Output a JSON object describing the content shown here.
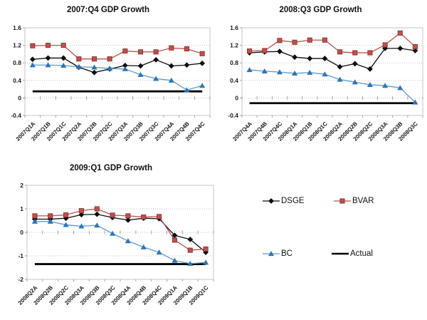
{
  "colors": {
    "dsge": "#0d0d0d",
    "bvar": "#C0504D",
    "bvar_border": "#8C3230",
    "bc_line": "#5B9BD5",
    "bc_marker": "#2E75B6",
    "actual": "#000000",
    "gridline": "#C6C6C6",
    "axis": "#9B9B9B",
    "text": "#1a1a1a"
  },
  "legend": {
    "items": [
      {
        "label": "DSGE",
        "series": "DSGE"
      },
      {
        "label": "BVAR",
        "series": "BVAR"
      },
      {
        "label": "BC",
        "series": "BC"
      },
      {
        "label": "Actual",
        "series": "Actual"
      }
    ]
  },
  "chart_data": [
    {
      "type": "line",
      "title": "2007:Q4 GDP Growth",
      "xlabel": "",
      "ylabel": "",
      "grid": true,
      "legend_position": "shared-bottom-right",
      "categories": [
        "2007Q1A",
        "2007Q1B",
        "2007Q1C",
        "2007Q2A",
        "2007Q2B",
        "2007Q2C",
        "2007Q3A",
        "2007Q3B",
        "2007Q3C",
        "2007Q4A",
        "2007Q4B",
        "2007Q4C"
      ],
      "ylim": [
        -0.4,
        1.6
      ],
      "yticks": [
        -0.4,
        0,
        0.4,
        0.8,
        1.2,
        1.6
      ],
      "series": [
        {
          "name": "DSGE",
          "marker": "diamond",
          "values": [
            0.88,
            0.91,
            0.91,
            0.7,
            0.58,
            0.66,
            0.74,
            0.73,
            0.87,
            0.73,
            0.75,
            0.79
          ]
        },
        {
          "name": "BVAR",
          "marker": "square",
          "values": [
            1.19,
            1.2,
            1.2,
            0.89,
            0.89,
            0.89,
            1.07,
            1.05,
            1.05,
            1.14,
            1.12,
            1.01
          ]
        },
        {
          "name": "BC",
          "marker": "triangle",
          "values": [
            0.75,
            0.75,
            0.74,
            0.71,
            0.7,
            0.67,
            0.66,
            0.53,
            0.44,
            0.4,
            0.18,
            0.28
          ]
        },
        {
          "name": "Actual",
          "marker": "none",
          "constant": 0.15
        }
      ]
    },
    {
      "type": "line",
      "title": "2008:Q3 GDP Growth",
      "xlabel": "",
      "ylabel": "",
      "grid": true,
      "legend_position": "shared-bottom-right",
      "categories": [
        "2007Q4A",
        "2007Q4B",
        "2007Q4C",
        "2008Q1A",
        "2008Q1B",
        "2008Q1C",
        "2008Q2A",
        "2008Q2B",
        "2008Q2C",
        "2008Q3A",
        "2008Q3B",
        "2008Q3C"
      ],
      "ylim": [
        -0.4,
        1.6
      ],
      "yticks": [
        -0.4,
        0,
        0.4,
        0.8,
        1.2,
        1.6
      ],
      "series": [
        {
          "name": "DSGE",
          "marker": "diamond",
          "values": [
            1.03,
            1.05,
            1.06,
            0.93,
            0.9,
            0.9,
            0.71,
            0.78,
            0.66,
            1.13,
            1.13,
            1.08
          ]
        },
        {
          "name": "BVAR",
          "marker": "square",
          "values": [
            1.07,
            1.08,
            1.31,
            1.27,
            1.32,
            1.32,
            1.05,
            1.03,
            1.03,
            1.21,
            1.48,
            1.17
          ]
        },
        {
          "name": "BC",
          "marker": "triangle",
          "values": [
            0.64,
            0.61,
            0.59,
            0.56,
            0.58,
            0.54,
            0.42,
            0.36,
            0.3,
            0.28,
            0.23,
            -0.1
          ]
        },
        {
          "name": "Actual",
          "marker": "none",
          "constant": -0.12
        }
      ]
    },
    {
      "type": "line",
      "title": "2009:Q1 GDP Growth",
      "xlabel": "",
      "ylabel": "",
      "grid": true,
      "legend_position": "shared-bottom-right",
      "categories": [
        "2008Q2A",
        "2008Q2B",
        "2008Q2C",
        "2008Q3A",
        "2008Q3B",
        "2008Q3C",
        "2008Q4A",
        "2008Q4B",
        "2008Q4C",
        "2009Q1A",
        "2009Q1B",
        "2009Q1C"
      ],
      "ylim": [
        -2,
        2
      ],
      "yticks": [
        -2,
        -1,
        0,
        1,
        2
      ],
      "series": [
        {
          "name": "DSGE",
          "marker": "diamond",
          "values": [
            0.56,
            0.56,
            0.6,
            0.75,
            0.77,
            0.63,
            0.52,
            0.6,
            0.58,
            -0.13,
            -0.3,
            -0.85
          ]
        },
        {
          "name": "BVAR",
          "marker": "square",
          "values": [
            0.7,
            0.7,
            0.74,
            0.92,
            1.0,
            0.73,
            0.7,
            0.65,
            0.67,
            -0.33,
            -0.76,
            -0.71
          ]
        },
        {
          "name": "BC",
          "marker": "triangle",
          "values": [
            0.46,
            0.46,
            0.32,
            0.26,
            0.3,
            -0.05,
            -0.37,
            -0.63,
            -0.85,
            -1.2,
            -1.33,
            -1.28
          ]
        },
        {
          "name": "Actual",
          "marker": "none",
          "constant": -1.35
        }
      ]
    }
  ]
}
